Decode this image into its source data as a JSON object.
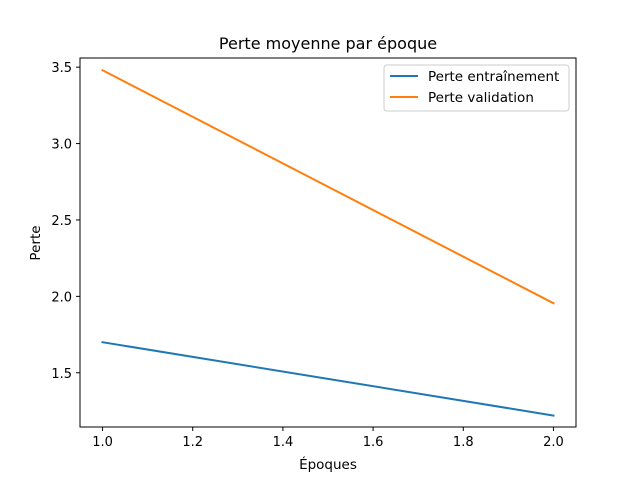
{
  "chart_data": {
    "type": "line",
    "title": "Perte moyenne par époque",
    "xlabel": "Époques",
    "ylabel": "Perte",
    "x": [
      1.0,
      2.0
    ],
    "xlim": [
      0.95,
      2.05
    ],
    "ylim": [
      1.145,
      3.56
    ],
    "xticks": [
      1.0,
      1.2,
      1.4,
      1.6,
      1.8,
      2.0
    ],
    "xtick_labels": [
      "1.0",
      "1.2",
      "1.4",
      "1.6",
      "1.8",
      "2.0"
    ],
    "yticks": [
      1.5,
      2.0,
      2.5,
      3.0,
      3.5
    ],
    "ytick_labels": [
      "1.5",
      "2.0",
      "2.5",
      "3.0",
      "3.5"
    ],
    "grid": false,
    "legend_position": "upper right",
    "series": [
      {
        "name": "Perte entraînement",
        "values": [
          1.7,
          1.22
        ],
        "color": "#1f77b4"
      },
      {
        "name": "Perte validation",
        "values": [
          3.48,
          1.955
        ],
        "color": "#ff7f0e"
      }
    ]
  }
}
